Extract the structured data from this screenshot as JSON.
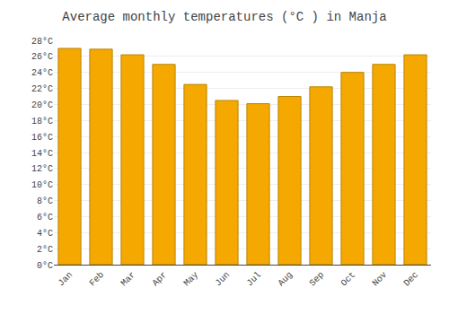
{
  "chart_data": {
    "type": "bar",
    "title": "Average monthly temperatures (°C ) in Manja",
    "categories": [
      "Jan",
      "Feb",
      "Mar",
      "Apr",
      "May",
      "Jun",
      "Jul",
      "Aug",
      "Sep",
      "Oct",
      "Nov",
      "Dec"
    ],
    "values": [
      27.0,
      26.9,
      26.2,
      25.0,
      22.5,
      20.5,
      20.1,
      21.0,
      22.2,
      24.0,
      25.0,
      26.2
    ],
    "color": "#F5A800",
    "ylim": [
      0,
      28
    ],
    "yticks": [
      {
        "value": 0,
        "label": "0°C"
      },
      {
        "value": 2,
        "label": "2°C"
      },
      {
        "value": 4,
        "label": "4°C"
      },
      {
        "value": 6,
        "label": "6°C"
      },
      {
        "value": 8,
        "label": "8°C"
      },
      {
        "value": 10,
        "label": "10°C"
      },
      {
        "value": 12,
        "label": "12°C"
      },
      {
        "value": 14,
        "label": "14°C"
      },
      {
        "value": 16,
        "label": "16°C"
      },
      {
        "value": 18,
        "label": "18°C"
      },
      {
        "value": 20,
        "label": "20°C"
      },
      {
        "value": 22,
        "label": "22°C"
      },
      {
        "value": 24,
        "label": "24°C"
      },
      {
        "value": 26,
        "label": "26°C"
      },
      {
        "value": 28,
        "label": "28°C"
      }
    ],
    "grid": true
  }
}
